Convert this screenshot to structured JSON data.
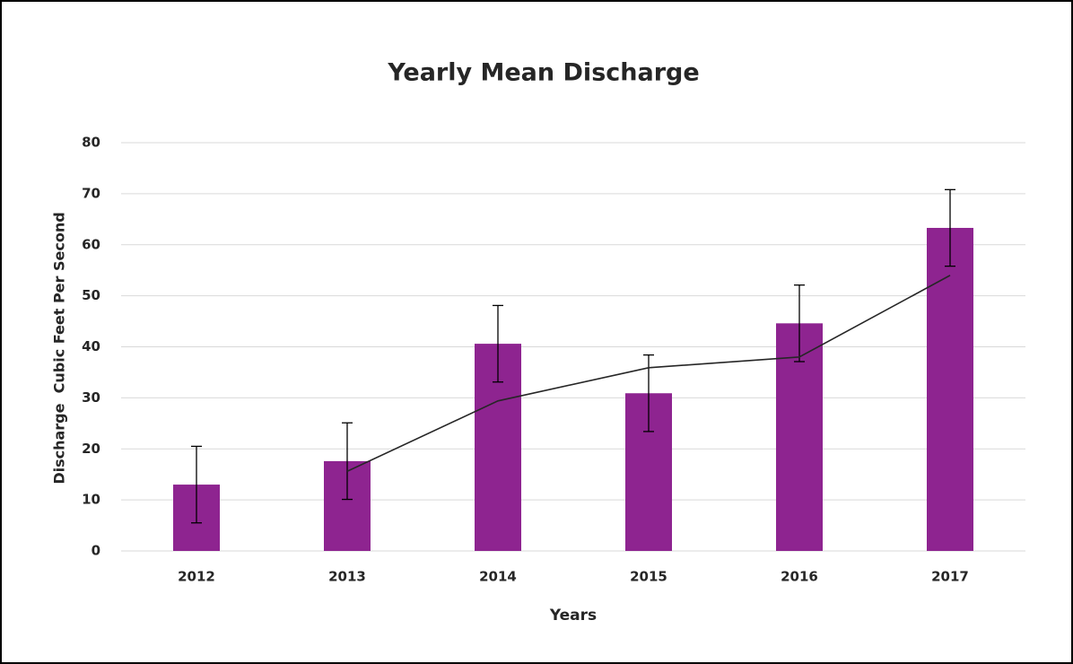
{
  "chart_data": {
    "type": "bar",
    "title": "Yearly Mean Discharge",
    "x_label": "Years",
    "y_label": "Discharge  Cubic Feet Per Second",
    "categories": [
      "2012",
      "2013",
      "2014",
      "2015",
      "2016",
      "2017"
    ],
    "values": [
      13.0,
      17.6,
      40.6,
      30.9,
      44.6,
      63.3
    ],
    "errors": [
      7.5,
      7.5,
      7.5,
      7.5,
      7.5,
      7.5
    ],
    "color": "#8e2490",
    "trend": {
      "values": [
        null,
        15.6,
        29.4,
        35.9,
        38.0,
        54.0
      ],
      "color": "#262626"
    },
    "ylim": [
      0,
      80
    ],
    "yticks": [
      0,
      10,
      20,
      30,
      40,
      50,
      60,
      70,
      80
    ],
    "grid": true
  }
}
